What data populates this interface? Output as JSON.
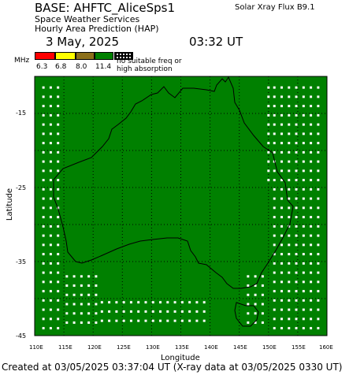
{
  "header": {
    "title": "BASE: AHFTC_AliceSps1",
    "subtitle1": "Space Weather Services",
    "subtitle2": "Hourly Area Prediction (HAP)",
    "xray_flux": "Solar Xray Flux B9.1",
    "date": "3 May, 2025",
    "time": "03:32 UT"
  },
  "legend": {
    "unit": "MHz",
    "frequencies": [
      "6.3",
      "6.8",
      "8.0",
      "11.4"
    ],
    "no_suitable": "no suitable freq or",
    "no_suitable2": "high absorption",
    "colors": [
      "#ff0000",
      "#ffff00",
      "#8b6f1a",
      "#008000"
    ]
  },
  "axes": {
    "latitude_title": "Latitude",
    "longitude_title": "Longitude",
    "latitude_ticks": [
      "-15",
      "-25",
      "-35",
      "-45"
    ],
    "longitude_ticks": [
      "110E",
      "115E",
      "120E",
      "125E",
      "130E",
      "135E",
      "140E",
      "145E",
      "150E",
      "155E",
      "160E"
    ]
  },
  "map": {
    "fill_color": "#008000",
    "lon_range": [
      110,
      160
    ],
    "lat_range": [
      -45,
      -10
    ]
  },
  "footer": {
    "text": "Created at 03/05/2025 03:37:04 UT (X-ray data at 03/05/2025 0330 UT)"
  }
}
